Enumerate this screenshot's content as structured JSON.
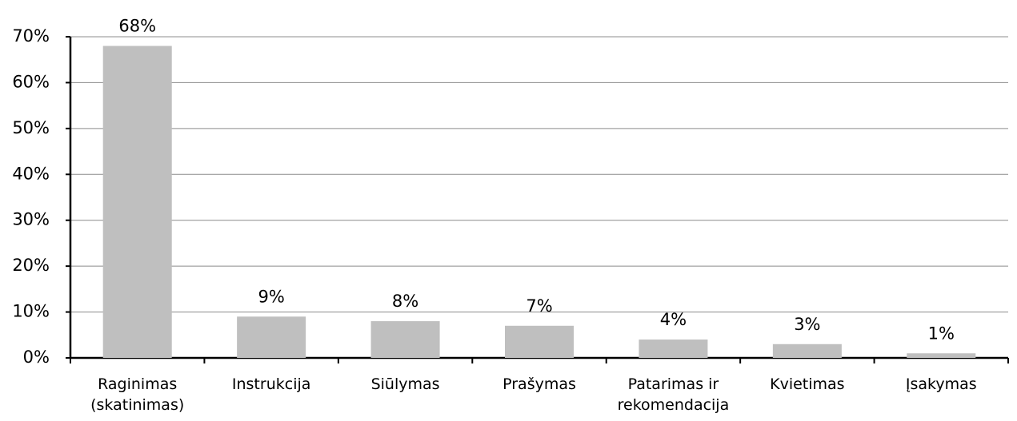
{
  "chart_data": {
    "type": "bar",
    "categories": [
      "Raginimas (skatinimas)",
      "Instrukcija",
      "Siūlymas",
      "Prašymas",
      "Patarimas ir rekomendacija",
      "Kvietimas",
      "Įsakymas"
    ],
    "values": [
      68,
      9,
      8,
      7,
      4,
      3,
      1
    ],
    "value_labels": [
      "68%",
      "9%",
      "8%",
      "7%",
      "4%",
      "3%",
      "1%"
    ],
    "color": "#bfbfbf",
    "ylim": [
      0,
      70
    ],
    "yticks": [
      {
        "value": 0,
        "label": "0%"
      },
      {
        "value": 10,
        "label": "10%"
      },
      {
        "value": 20,
        "label": "20%"
      },
      {
        "value": 30,
        "label": "30%"
      },
      {
        "value": 40,
        "label": "40%"
      },
      {
        "value": 50,
        "label": "50%"
      },
      {
        "value": 60,
        "label": "60%"
      },
      {
        "value": 70,
        "label": "70%"
      }
    ],
    "grid": true
  }
}
